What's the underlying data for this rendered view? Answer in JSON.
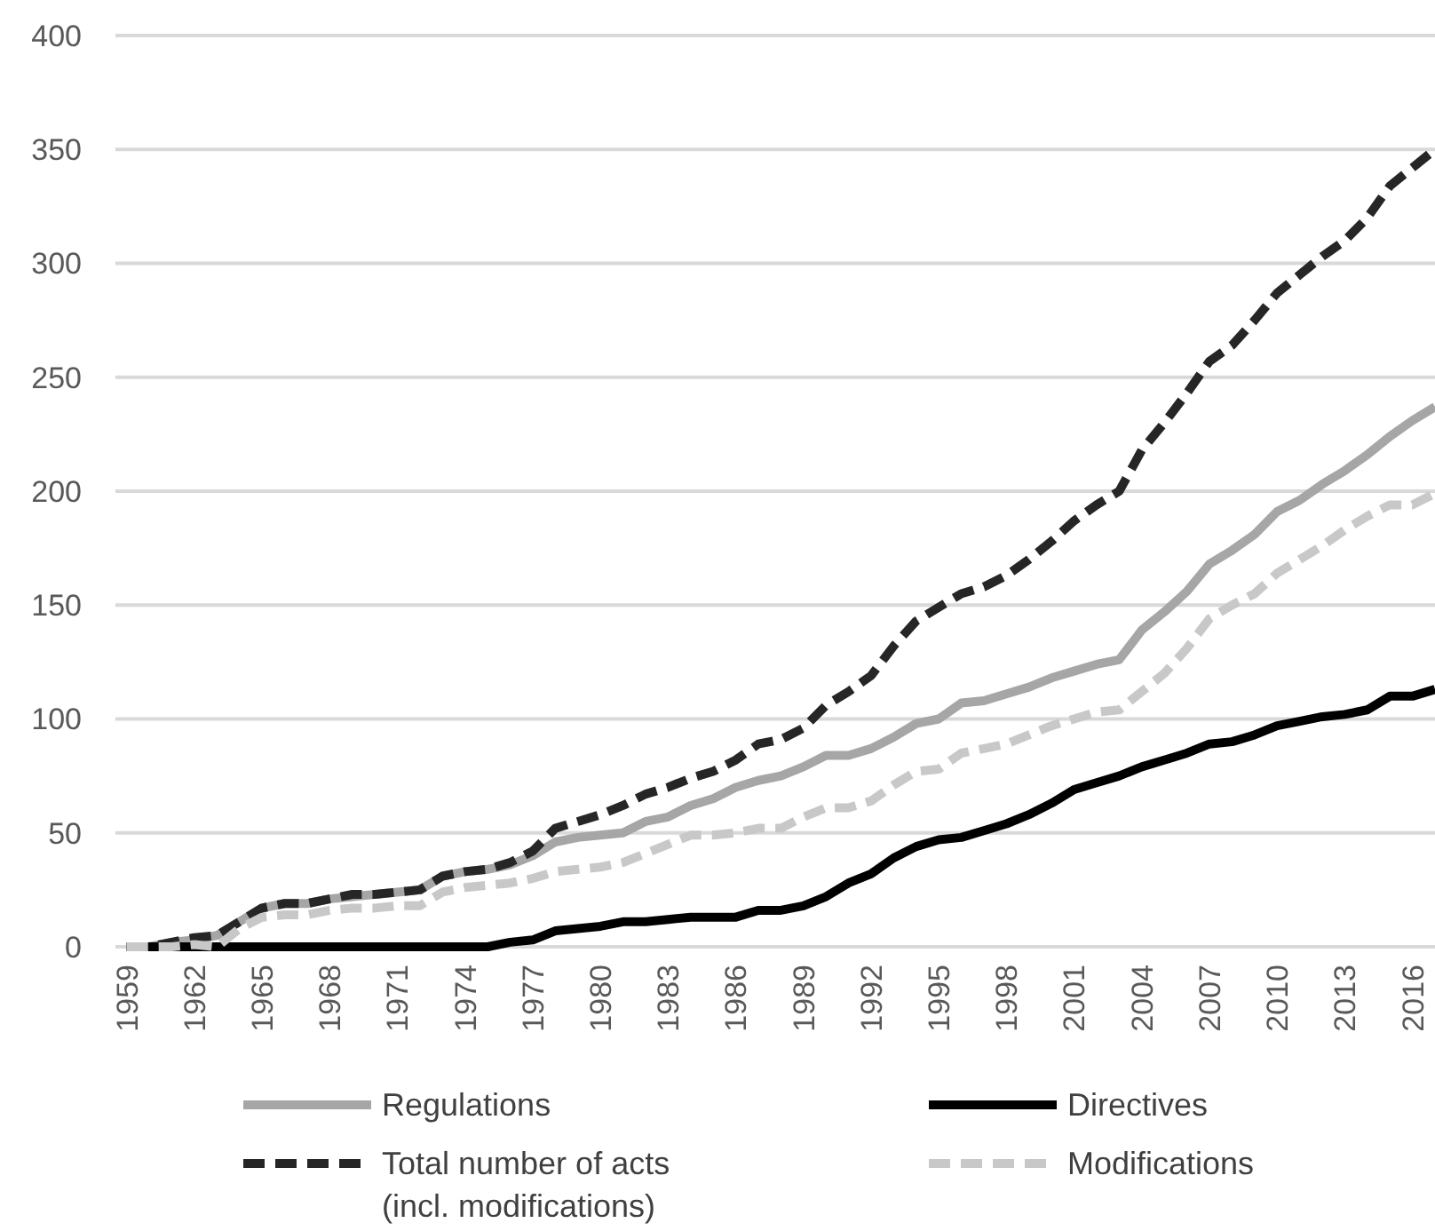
{
  "chart_data": {
    "type": "line",
    "x": [
      1959,
      1960,
      1961,
      1962,
      1963,
      1964,
      1965,
      1966,
      1967,
      1968,
      1969,
      1970,
      1971,
      1972,
      1973,
      1974,
      1975,
      1976,
      1977,
      1978,
      1979,
      1980,
      1981,
      1982,
      1983,
      1984,
      1985,
      1986,
      1987,
      1988,
      1989,
      1990,
      1991,
      1992,
      1993,
      1994,
      1995,
      1996,
      1997,
      1998,
      1999,
      2000,
      2001,
      2002,
      2003,
      2004,
      2005,
      2006,
      2007,
      2008,
      2009,
      2010,
      2011,
      2012,
      2013,
      2014,
      2015,
      2016,
      2017
    ],
    "series": [
      {
        "name": "Regulations",
        "color": "#a6a6a6",
        "line_style": "solid",
        "values": [
          0,
          0,
          2,
          3,
          5,
          11,
          17,
          19,
          19,
          21,
          22,
          23,
          24,
          25,
          31,
          33,
          34,
          36,
          40,
          46,
          48,
          49,
          50,
          55,
          57,
          62,
          65,
          70,
          73,
          75,
          79,
          84,
          84,
          87,
          92,
          98,
          100,
          107,
          108,
          111,
          114,
          118,
          121,
          124,
          126,
          139,
          147,
          156,
          168,
          174,
          181,
          191,
          196,
          203,
          209,
          216,
          224,
          231,
          237
        ]
      },
      {
        "name": "Directives",
        "color": "#000000",
        "line_style": "solid",
        "values": [
          0,
          0,
          0,
          0,
          0,
          0,
          0,
          0,
          0,
          0,
          0,
          0,
          0,
          0,
          0,
          0,
          0,
          2,
          3,
          7,
          8,
          9,
          11,
          11,
          12,
          13,
          13,
          13,
          16,
          16,
          18,
          22,
          28,
          32,
          39,
          44,
          47,
          48,
          51,
          54,
          58,
          63,
          69,
          72,
          75,
          79,
          82,
          85,
          89,
          90,
          93,
          97,
          99,
          101,
          102,
          104,
          110,
          110,
          113
        ]
      },
      {
        "name": "Total number of acts\n(incl. modifications)",
        "color": "#262626",
        "line_style": "dashed",
        "values": [
          0,
          0,
          2,
          4,
          5,
          11,
          17,
          19,
          19,
          21,
          23,
          23,
          24,
          25,
          31,
          33,
          34,
          37,
          42,
          52,
          55,
          58,
          62,
          67,
          70,
          74,
          77,
          82,
          89,
          91,
          96,
          106,
          112,
          119,
          132,
          143,
          149,
          155,
          158,
          163,
          170,
          178,
          187,
          194,
          200,
          218,
          230,
          243,
          257,
          264,
          275,
          287,
          295,
          303,
          310,
          320,
          334,
          342,
          350
        ]
      },
      {
        "name": "Modifications",
        "color": "#c8c8c8",
        "line_style": "dashed",
        "values": [
          0,
          0,
          0,
          1,
          0,
          8,
          13,
          14,
          14,
          16,
          17,
          17,
          18,
          18,
          24,
          26,
          27,
          28,
          30,
          33,
          34,
          35,
          37,
          41,
          45,
          49,
          49,
          50,
          52,
          52,
          57,
          61,
          61,
          64,
          71,
          77,
          78,
          85,
          87,
          89,
          93,
          97,
          100,
          103,
          104,
          112,
          120,
          131,
          144,
          150,
          155,
          164,
          170,
          176,
          183,
          189,
          194,
          194,
          199
        ]
      }
    ],
    "xlim": [
      1958.5,
      2017
    ],
    "xticks": [
      1959,
      1962,
      1965,
      1968,
      1971,
      1974,
      1977,
      1980,
      1983,
      1986,
      1989,
      1992,
      1995,
      1998,
      2001,
      2004,
      2007,
      2010,
      2013,
      2016
    ],
    "ylim": [
      0,
      400
    ],
    "yticks": [
      0,
      50,
      100,
      150,
      200,
      250,
      300,
      350,
      400
    ],
    "grid": "y",
    "legend": "bottom",
    "marker": "none"
  }
}
